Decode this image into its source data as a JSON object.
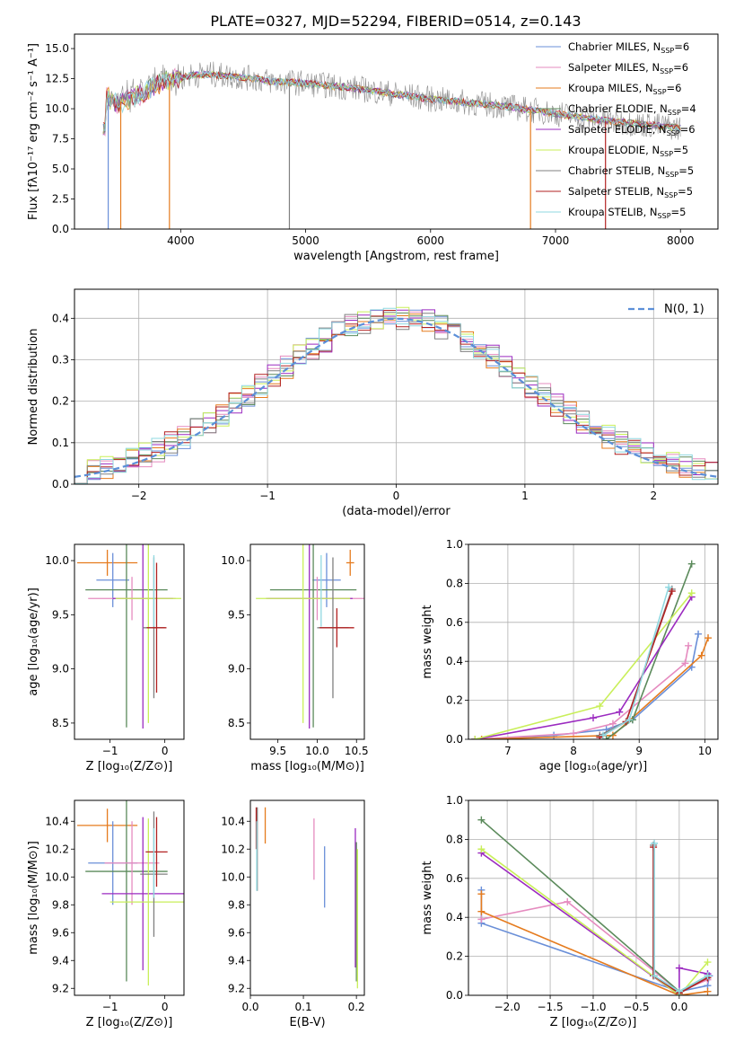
{
  "figure_title": "PLATE=0327, MJD=52294, FIBERID=0514, z=0.143",
  "colors": {
    "chabrier_miles": "#6a8fd8",
    "salpeter_miles": "#e58bbf",
    "kroupa_miles": "#e57b1e",
    "chabrier_elodie": "#5b8a5b",
    "salpeter_elodie": "#9b2ac0",
    "kroupa_elodie": "#c9ef5a",
    "chabrier_stelib": "#808080",
    "salpeter_stelib": "#b22222",
    "kroupa_stelib": "#8fd8e0"
  },
  "chart_data": [
    {
      "id": "spectrum",
      "type": "line",
      "title": "",
      "xlabel": "wavelength [Angstrom, rest frame]",
      "ylabel": "Flux [fλ10⁻¹⁷ erg cm⁻² s⁻¹ A⁻¹]",
      "xlim": [
        3150,
        8300
      ],
      "ylim": [
        0,
        16.2
      ],
      "xticks": [
        4000,
        5000,
        6000,
        7000,
        8000
      ],
      "yticks": [
        0.0,
        2.5,
        5.0,
        7.5,
        10.0,
        12.5,
        15.0
      ],
      "ytick_labels": [
        "0.0",
        "2.5",
        "5.0",
        "7.5",
        "10.0",
        "12.5",
        "15.0"
      ],
      "grid": false,
      "legend": "upper-right",
      "legend_entries": [
        {
          "text": "Chabrier MILES, N",
          "sub": "SSP",
          "tail": "=6",
          "color": "chabrier_miles"
        },
        {
          "text": "Salpeter MILES, N",
          "sub": "SSP",
          "tail": "=6",
          "color": "salpeter_miles"
        },
        {
          "text": "Kroupa MILES, N",
          "sub": "SSP",
          "tail": "=6",
          "color": "kroupa_miles"
        },
        {
          "text": "Chabrier ELODIE, N",
          "sub": "SSP",
          "tail": "=4",
          "color": "chabrier_elodie"
        },
        {
          "text": "Salpeter ELODIE, N",
          "sub": "SSP",
          "tail": "=6",
          "color": "salpeter_elodie"
        },
        {
          "text": "Kroupa ELODIE, N",
          "sub": "SSP",
          "tail": "=5",
          "color": "kroupa_elodie"
        },
        {
          "text": "Chabrier STELIB, N",
          "sub": "SSP",
          "tail": "=5",
          "color": "chabrier_stelib"
        },
        {
          "text": "Salpeter STELIB, N",
          "sub": "SSP",
          "tail": "=5",
          "color": "salpeter_stelib"
        },
        {
          "text": "Kroupa STELIB, N",
          "sub": "SSP",
          "tail": "=5",
          "color": "kroupa_stelib"
        }
      ],
      "data_curve": {
        "x": [
          3400,
          3500,
          3600,
          3700,
          3800,
          3900,
          4000,
          4100,
          4200,
          4300,
          4400,
          4500,
          4600,
          4700,
          4800,
          4900,
          5000,
          5200,
          5400,
          5600,
          5800,
          6000,
          6200,
          6400,
          6600,
          6800,
          7000,
          7200,
          7400,
          7600,
          7800,
          8000
        ],
        "y": [
          11.0,
          10.5,
          10.8,
          11.3,
          12.0,
          12.3,
          12.6,
          12.8,
          12.9,
          12.8,
          12.7,
          12.6,
          12.5,
          12.3,
          12.2,
          12.2,
          12.1,
          11.9,
          11.7,
          11.4,
          11.1,
          10.8,
          10.6,
          10.4,
          10.2,
          9.9,
          9.6,
          9.3,
          9.0,
          8.8,
          8.6,
          8.4
        ]
      },
      "spikes": [
        {
          "x": 3420,
          "y": 0,
          "color": "chabrier_miles"
        },
        {
          "x": 3520,
          "y": 0,
          "color": "kroupa_miles"
        },
        {
          "x": 3910,
          "y": 0,
          "color": "kroupa_miles"
        },
        {
          "x": 4870,
          "y": 0,
          "color": "chabrier_stelib"
        },
        {
          "x": 6800,
          "y": 0,
          "color": "kroupa_miles"
        },
        {
          "x": 7400,
          "y": 0,
          "color": "salpeter_stelib"
        }
      ]
    },
    {
      "id": "residuals",
      "type": "histogram",
      "title": "",
      "xlabel": "(data-model)/error",
      "ylabel": "Normed distribution",
      "xlim": [
        -2.5,
        2.5
      ],
      "ylim": [
        0,
        0.47
      ],
      "xticks": [
        -2,
        -1,
        0,
        1,
        2
      ],
      "xtick_labels": [
        "−2",
        "−1",
        "0",
        "1",
        "2"
      ],
      "yticks": [
        0.0,
        0.1,
        0.2,
        0.3,
        0.4
      ],
      "ytick_labels": [
        "0.0",
        "0.1",
        "0.2",
        "0.3",
        "0.4"
      ],
      "grid": true,
      "legend": "upper-right",
      "legend_label": "N(0, 1)",
      "bin_width": 0.1
    },
    {
      "id": "age-vs-Z",
      "type": "scatter",
      "xlabel": "Z [log₁₀(Z/Z⊙)]",
      "ylabel": "age  [log₁₀(age/yr)]",
      "xlim": [
        -1.65,
        0.35
      ],
      "ylim": [
        8.35,
        10.15
      ],
      "xticks": [
        -1,
        0
      ],
      "xtick_labels": [
        "−1",
        "0"
      ],
      "yticks": [
        8.5,
        9.0,
        9.5,
        10.0
      ],
      "ytick_labels": [
        "8.5",
        "9.0",
        "9.5",
        "10.0"
      ],
      "grid": false,
      "points": [
        {
          "x": -1.05,
          "y": 9.98,
          "xerr": 0.55,
          "yerr": 0.12,
          "color": "kroupa_miles"
        },
        {
          "x": -0.95,
          "y": 9.82,
          "xerr": 0.3,
          "yerr": 0.25,
          "color": "chabrier_miles"
        },
        {
          "x": -0.7,
          "y": 9.73,
          "xerr": 0.75,
          "yerr": 1.27,
          "color": "chabrier_elodie"
        },
        {
          "x": -0.6,
          "y": 9.65,
          "xerr": 0.8,
          "yerr": 0.2,
          "color": "salpeter_miles"
        },
        {
          "x": -0.4,
          "y": 9.65,
          "xerr": 0.55,
          "yerr": 1.2,
          "color": "salpeter_elodie"
        },
        {
          "x": -0.3,
          "y": 9.65,
          "xerr": 0.6,
          "yerr": 1.15,
          "color": "kroupa_elodie"
        },
        {
          "x": -0.2,
          "y": 9.38,
          "xerr": 0.2,
          "yerr": 0.65,
          "color": "chabrier_stelib"
        },
        {
          "x": -0.15,
          "y": 9.38,
          "xerr": 0.18,
          "yerr": 0.6,
          "color": "salpeter_stelib"
        },
        {
          "x": -0.2,
          "y": 9.72,
          "xerr": 0.0,
          "yerr": 0.33,
          "color": "kroupa_stelib"
        }
      ]
    },
    {
      "id": "age-vs-mass",
      "type": "scatter",
      "xlabel": "mass [log₁₀(M/M⊙)]",
      "ylabel": "",
      "xlim": [
        9.15,
        10.6
      ],
      "ylim": [
        8.35,
        10.15
      ],
      "xticks": [
        9.5,
        10.0,
        10.5
      ],
      "xtick_labels": [
        "9.5",
        "10.0",
        "10.5"
      ],
      "yticks": [
        8.5,
        9.0,
        9.5,
        10.0
      ],
      "ytick_labels": [
        "8.5",
        "9.0",
        "9.5",
        "10.0"
      ],
      "grid": false,
      "points": [
        {
          "x": 10.42,
          "y": 9.98,
          "xerr": 0.05,
          "yerr": 0.12,
          "color": "kroupa_miles"
        },
        {
          "x": 10.12,
          "y": 9.82,
          "xerr": 0.18,
          "yerr": 0.25,
          "color": "chabrier_miles"
        },
        {
          "x": 9.95,
          "y": 9.73,
          "xerr": 0.55,
          "yerr": 1.27,
          "color": "chabrier_elodie"
        },
        {
          "x": 10.0,
          "y": 9.65,
          "xerr": 0.62,
          "yerr": 0.2,
          "color": "salpeter_miles"
        },
        {
          "x": 9.9,
          "y": 9.65,
          "xerr": 0.55,
          "yerr": 1.2,
          "color": "salpeter_elodie"
        },
        {
          "x": 9.82,
          "y": 9.65,
          "xerr": 0.6,
          "yerr": 1.15,
          "color": "kroupa_elodie"
        },
        {
          "x": 10.2,
          "y": 9.38,
          "xerr": 0.2,
          "yerr": 0.65,
          "color": "chabrier_stelib"
        },
        {
          "x": 10.25,
          "y": 9.38,
          "xerr": 0.22,
          "yerr": 0.18,
          "color": "salpeter_stelib"
        },
        {
          "x": 10.05,
          "y": 9.72,
          "xerr": 0.0,
          "yerr": 0.33,
          "color": "kroupa_stelib"
        }
      ]
    },
    {
      "id": "massweight-vs-age",
      "type": "line",
      "xlabel": "age  [log₁₀(age/yr)]",
      "ylabel": "mass weight",
      "xlim": [
        6.4,
        10.2
      ],
      "ylim": [
        0,
        1.0
      ],
      "xticks": [
        7,
        8,
        9,
        10
      ],
      "xtick_labels": [
        "7",
        "8",
        "9",
        "10"
      ],
      "yticks": [
        0.0,
        0.2,
        0.4,
        0.6,
        0.8,
        1.0
      ],
      "ytick_labels": [
        "0.0",
        "0.2",
        "0.4",
        "0.6",
        "0.8",
        "1.0"
      ],
      "grid": true,
      "series": [
        {
          "color": "chabrier_miles",
          "x": [
            6.5,
            7.7,
            8.5,
            8.9,
            9.8,
            9.9
          ],
          "y": [
            0.0,
            0.02,
            0.05,
            0.1,
            0.37,
            0.54
          ]
        },
        {
          "color": "salpeter_miles",
          "x": [
            6.5,
            8.0,
            8.6,
            9.7,
            9.75
          ],
          "y": [
            0.0,
            0.03,
            0.08,
            0.39,
            0.48
          ]
        },
        {
          "color": "kroupa_miles",
          "x": [
            6.6,
            8.6,
            9.95,
            10.05
          ],
          "y": [
            0.0,
            0.02,
            0.43,
            0.52
          ]
        },
        {
          "color": "chabrier_elodie",
          "x": [
            8.5,
            8.9,
            9.8
          ],
          "y": [
            0.0,
            0.1,
            0.9
          ]
        },
        {
          "color": "salpeter_elodie",
          "x": [
            6.5,
            8.3,
            8.7,
            9.8
          ],
          "y": [
            0.0,
            0.11,
            0.14,
            0.73
          ]
        },
        {
          "color": "kroupa_elodie",
          "x": [
            6.5,
            8.4,
            9.8
          ],
          "y": [
            0.0,
            0.17,
            0.75
          ]
        },
        {
          "color": "chabrier_stelib",
          "x": [
            8.4,
            8.8,
            9.5
          ],
          "y": [
            0.02,
            0.09,
            0.77
          ]
        },
        {
          "color": "salpeter_stelib",
          "x": [
            8.4,
            8.8,
            9.5
          ],
          "y": [
            0.01,
            0.09,
            0.76
          ]
        },
        {
          "color": "kroupa_stelib",
          "x": [
            8.45,
            8.85,
            9.45
          ],
          "y": [
            0.02,
            0.1,
            0.78
          ]
        }
      ]
    },
    {
      "id": "mass-vs-Z",
      "type": "scatter",
      "xlabel": "Z [log₁₀(Z/Z⊙)]",
      "ylabel": "mass [log₁₀(M/M⊙)]",
      "xlim": [
        -1.65,
        0.35
      ],
      "ylim": [
        9.15,
        10.55
      ],
      "xticks": [
        -1,
        0
      ],
      "xtick_labels": [
        "−1",
        "0"
      ],
      "yticks": [
        9.2,
        9.4,
        9.6,
        9.8,
        10.0,
        10.2,
        10.4
      ],
      "ytick_labels": [
        "9.2",
        "9.4",
        "9.6",
        "9.8",
        "10.0",
        "10.2",
        "10.4"
      ],
      "grid": false,
      "points": [
        {
          "x": -1.05,
          "y": 10.37,
          "xerr": 0.55,
          "yerr": 0.12,
          "color": "kroupa_miles"
        },
        {
          "x": -0.95,
          "y": 10.1,
          "xerr": 0.45,
          "yerr": 0.3,
          "color": "chabrier_miles"
        },
        {
          "x": -0.7,
          "y": 10.04,
          "xerr": 0.75,
          "yerr": 0.79,
          "color": "chabrier_elodie"
        },
        {
          "x": -0.6,
          "y": 10.1,
          "xerr": 0.5,
          "yerr": 0.3,
          "color": "salpeter_miles"
        },
        {
          "x": -0.4,
          "y": 9.88,
          "xerr": 0.75,
          "yerr": 0.55,
          "color": "salpeter_elodie"
        },
        {
          "x": -0.3,
          "y": 9.82,
          "xerr": 0.7,
          "yerr": 0.6,
          "color": "kroupa_elodie"
        },
        {
          "x": -0.2,
          "y": 10.02,
          "xerr": 0.25,
          "yerr": 0.45,
          "color": "chabrier_stelib"
        },
        {
          "x": -0.15,
          "y": 10.18,
          "xerr": 0.2,
          "yerr": 0.25,
          "color": "salpeter_stelib"
        },
        {
          "x": -0.2,
          "y": 10.1,
          "xerr": 0.0,
          "yerr": 0.25,
          "color": "kroupa_stelib"
        }
      ]
    },
    {
      "id": "mass-vs-EBV",
      "type": "scatter",
      "xlabel": "E(B-V)",
      "ylabel": "",
      "xlim": [
        0.0,
        0.215
      ],
      "ylim": [
        9.15,
        10.55
      ],
      "xticks": [
        0.0,
        0.1,
        0.2
      ],
      "xtick_labels": [
        "0.0",
        "0.1",
        "0.2"
      ],
      "yticks": [
        9.2,
        9.4,
        9.6,
        9.8,
        10.0,
        10.2,
        10.4
      ],
      "ytick_labels": [
        "9.2",
        "9.4",
        "9.6",
        "9.8",
        "10.0",
        "10.2",
        "10.4"
      ],
      "grid": false,
      "points": [
        {
          "x": 0.013,
          "y": 10.2,
          "xerr": 0.0,
          "yerr": 0.3,
          "color": "chabrier_stelib"
        },
        {
          "x": 0.011,
          "y": 10.35,
          "xerr": 0.0,
          "yerr": 0.15,
          "color": "salpeter_stelib"
        },
        {
          "x": 0.012,
          "y": 10.15,
          "xerr": 0.0,
          "yerr": 0.25,
          "color": "kroupa_stelib"
        },
        {
          "x": 0.028,
          "y": 10.37,
          "xerr": 0.0,
          "yerr": 0.13,
          "color": "kroupa_miles"
        },
        {
          "x": 0.12,
          "y": 10.2,
          "xerr": 0.0,
          "yerr": 0.22,
          "color": "salpeter_miles"
        },
        {
          "x": 0.14,
          "y": 10.0,
          "xerr": 0.0,
          "yerr": 0.22,
          "color": "chabrier_miles"
        },
        {
          "x": 0.198,
          "y": 9.85,
          "xerr": 0.0,
          "yerr": 0.5,
          "color": "salpeter_elodie"
        },
        {
          "x": 0.2,
          "y": 9.75,
          "xerr": 0.0,
          "yerr": 0.5,
          "color": "chabrier_elodie"
        },
        {
          "x": 0.202,
          "y": 9.7,
          "xerr": 0.0,
          "yerr": 0.5,
          "color": "kroupa_elodie"
        }
      ]
    },
    {
      "id": "massweight-vs-Z",
      "type": "line",
      "xlabel": "Z [log₁₀(Z/Z⊙)]",
      "ylabel": "mass weight",
      "xlim": [
        -2.45,
        0.45
      ],
      "ylim": [
        0,
        1.0
      ],
      "xticks": [
        -2.0,
        -1.5,
        -1.0,
        -0.5,
        0.0
      ],
      "xtick_labels": [
        "−2.0",
        "−1.5",
        "−1.0",
        "−0.5",
        "0.0"
      ],
      "yticks": [
        0.0,
        0.2,
        0.4,
        0.6,
        0.8,
        1.0
      ],
      "ytick_labels": [
        "0.0",
        "0.2",
        "0.4",
        "0.6",
        "0.8",
        "1.0"
      ],
      "grid": true,
      "series": [
        {
          "color": "chabrier_miles",
          "x": [
            -2.3,
            -2.3,
            0.0,
            0.33,
            0.35
          ],
          "y": [
            0.54,
            0.37,
            0.02,
            0.05,
            0.1
          ]
        },
        {
          "color": "salpeter_miles",
          "x": [
            -2.3,
            -1.3,
            0.0,
            0.33
          ],
          "y": [
            0.39,
            0.48,
            0.02,
            0.08
          ]
        },
        {
          "color": "kroupa_miles",
          "x": [
            -2.3,
            -2.3,
            0.0,
            0.33
          ],
          "y": [
            0.52,
            0.43,
            0.0,
            0.02
          ]
        },
        {
          "color": "chabrier_elodie",
          "x": [
            -2.3,
            0.0,
            0.33
          ],
          "y": [
            0.9,
            0.02,
            0.1
          ]
        },
        {
          "color": "salpeter_elodie",
          "x": [
            -2.3,
            0.0,
            0.0,
            0.33
          ],
          "y": [
            0.73,
            0.0,
            0.14,
            0.11
          ]
        },
        {
          "color": "kroupa_elodie",
          "x": [
            -2.3,
            0.0,
            0.33
          ],
          "y": [
            0.75,
            0.0,
            0.17
          ]
        },
        {
          "color": "chabrier_stelib",
          "x": [
            -0.3,
            -0.3,
            0.0,
            0.33
          ],
          "y": [
            0.77,
            0.1,
            0.02,
            0.09
          ]
        },
        {
          "color": "salpeter_stelib",
          "x": [
            -0.3,
            -0.3,
            0.0,
            0.33
          ],
          "y": [
            0.76,
            0.1,
            0.01,
            0.09
          ]
        },
        {
          "color": "kroupa_stelib",
          "x": [
            -0.29,
            -0.29,
            0.0,
            0.33
          ],
          "y": [
            0.78,
            0.1,
            0.02,
            0.1
          ]
        }
      ]
    }
  ]
}
